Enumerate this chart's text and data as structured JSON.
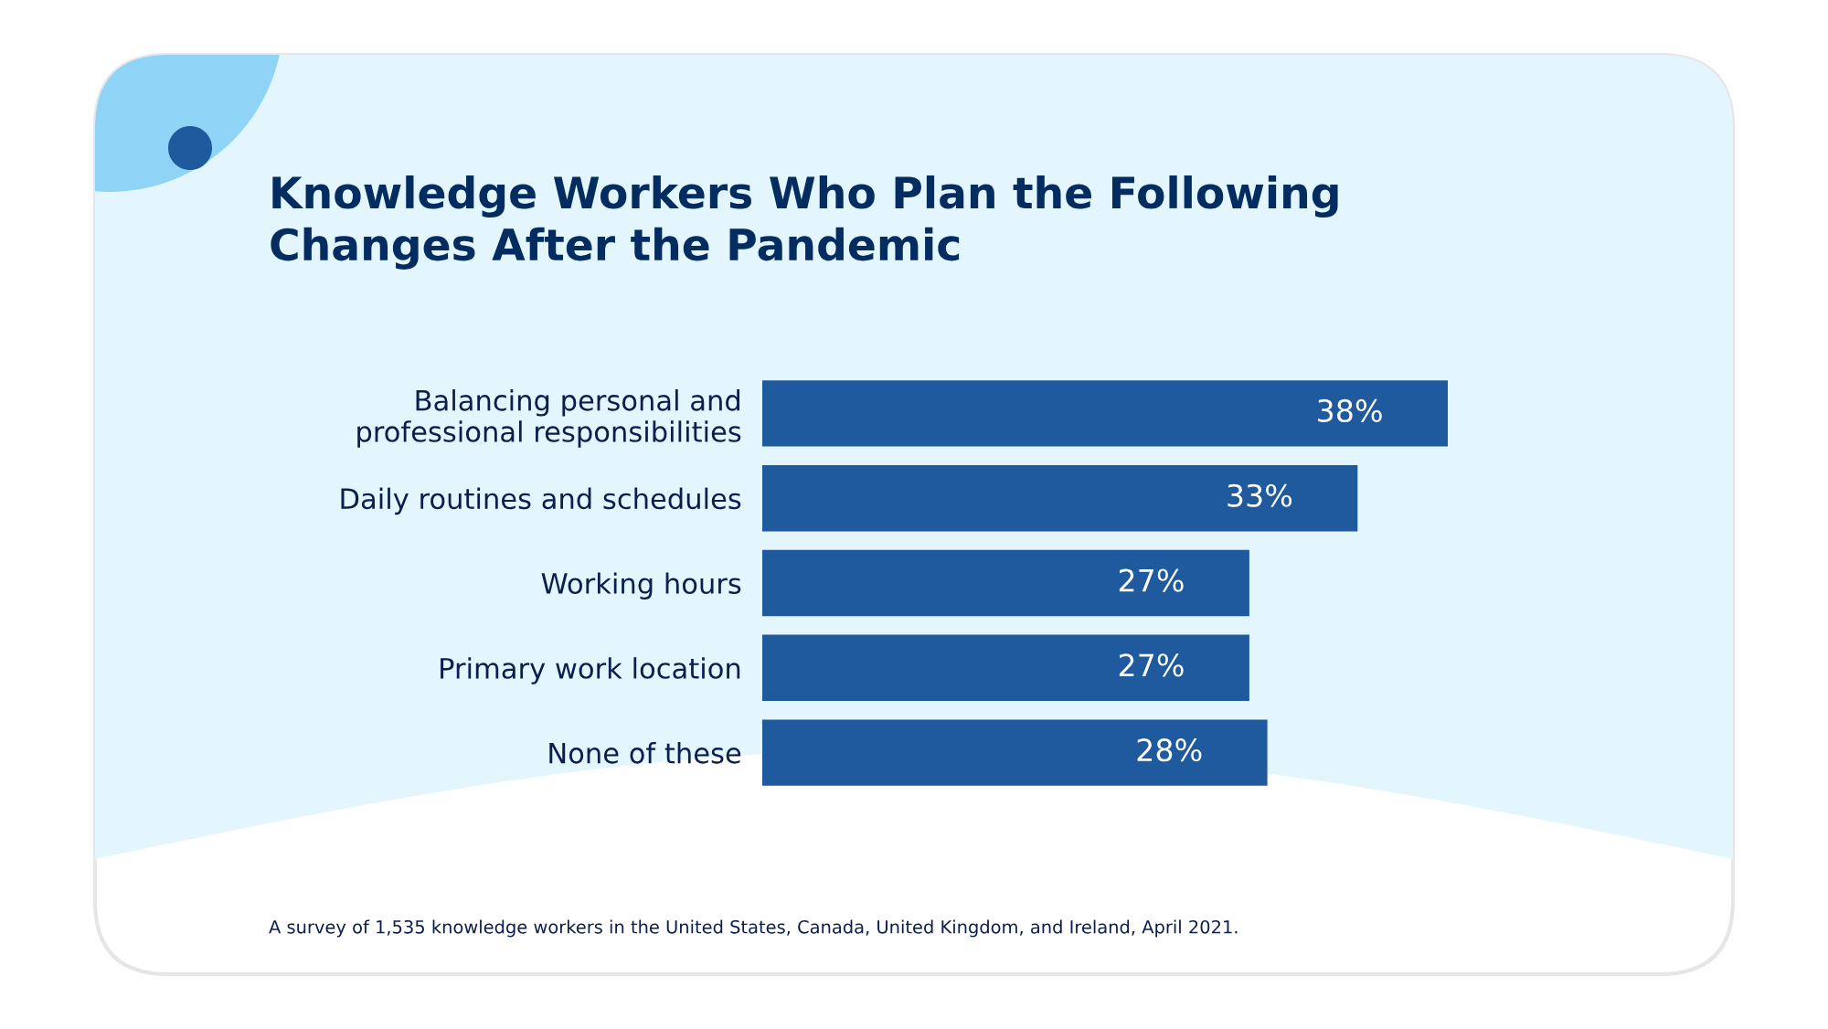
{
  "chart_data": {
    "type": "bar",
    "orientation": "horizontal",
    "title": "Knowledge Workers Who Plan the Following\nChanges After the Pandemic",
    "categories": [
      "Balancing personal and\nprofessional responsibilities",
      "Daily routines and schedules",
      "Working hours",
      "Primary work location",
      "None of these"
    ],
    "values": [
      38,
      33,
      27,
      27,
      28
    ],
    "value_labels": [
      "38%",
      "33%",
      "27%",
      "27%",
      "28%"
    ],
    "color": "#1f5a9e",
    "annotations": [
      "A survey of 1,535 knowledge workers in the United States, Canada, United Kingdom, and Ireland, April 2021."
    ]
  }
}
